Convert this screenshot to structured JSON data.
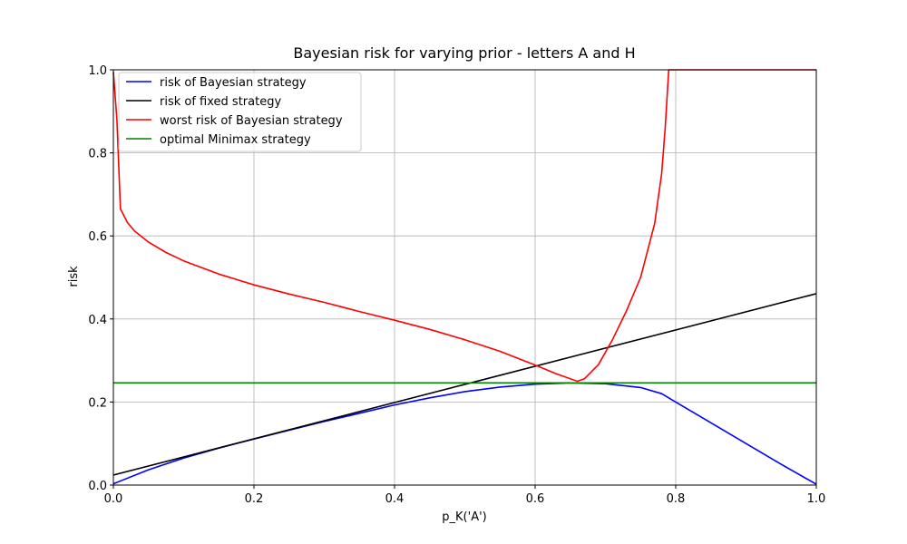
{
  "chart_data": {
    "type": "line",
    "title": "Bayesian risk for varying prior - letters A and H",
    "xlabel": "p_K('A')",
    "ylabel": "risk",
    "xlim": [
      0,
      1
    ],
    "ylim": [
      0,
      1
    ],
    "grid": true,
    "legend_position": "upper-left",
    "x_ticks": [
      "0.0",
      "0.2",
      "0.4",
      "0.6",
      "0.8",
      "1.0"
    ],
    "y_ticks": [
      "0.0",
      "0.2",
      "0.4",
      "0.6",
      "0.8",
      "1.0"
    ],
    "series": [
      {
        "name": "risk of Bayesian strategy",
        "color": "#0000ff",
        "x": [
          0,
          0.05,
          0.1,
          0.15,
          0.2,
          0.25,
          0.3,
          0.35,
          0.4,
          0.45,
          0.5,
          0.55,
          0.6,
          0.65,
          0.7,
          0.75,
          0.78,
          0.8,
          0.85,
          0.9,
          0.95,
          1.0
        ],
        "y": [
          0.003,
          0.037,
          0.065,
          0.089,
          0.111,
          0.132,
          0.153,
          0.173,
          0.193,
          0.21,
          0.225,
          0.236,
          0.243,
          0.246,
          0.244,
          0.235,
          0.22,
          0.2,
          0.15,
          0.1,
          0.05,
          0.002
        ]
      },
      {
        "name": "risk of fixed strategy",
        "color": "#000000",
        "x": [
          0,
          1
        ],
        "y": [
          0.024,
          0.461
        ]
      },
      {
        "name": "worst risk of Bayesian strategy",
        "color": "#ff0000",
        "x": [
          0,
          0.005,
          0.01,
          0.02,
          0.03,
          0.05,
          0.075,
          0.1,
          0.15,
          0.2,
          0.25,
          0.3,
          0.35,
          0.4,
          0.45,
          0.5,
          0.55,
          0.6,
          0.63,
          0.66,
          0.67,
          0.69,
          0.71,
          0.73,
          0.75,
          0.77,
          0.78,
          0.785,
          0.79,
          0.8,
          0.9,
          1.0
        ],
        "y": [
          0.995,
          0.88,
          0.665,
          0.632,
          0.612,
          0.585,
          0.56,
          0.54,
          0.508,
          0.482,
          0.46,
          0.44,
          0.418,
          0.397,
          0.375,
          0.35,
          0.322,
          0.289,
          0.268,
          0.25,
          0.256,
          0.29,
          0.35,
          0.42,
          0.5,
          0.63,
          0.75,
          0.86,
          1.0,
          1.0,
          1.0,
          1.0
        ]
      },
      {
        "name": "optimal Minimax strategy",
        "color": "#008000",
        "x": [
          0,
          1
        ],
        "y": [
          0.246,
          0.246
        ]
      }
    ]
  }
}
